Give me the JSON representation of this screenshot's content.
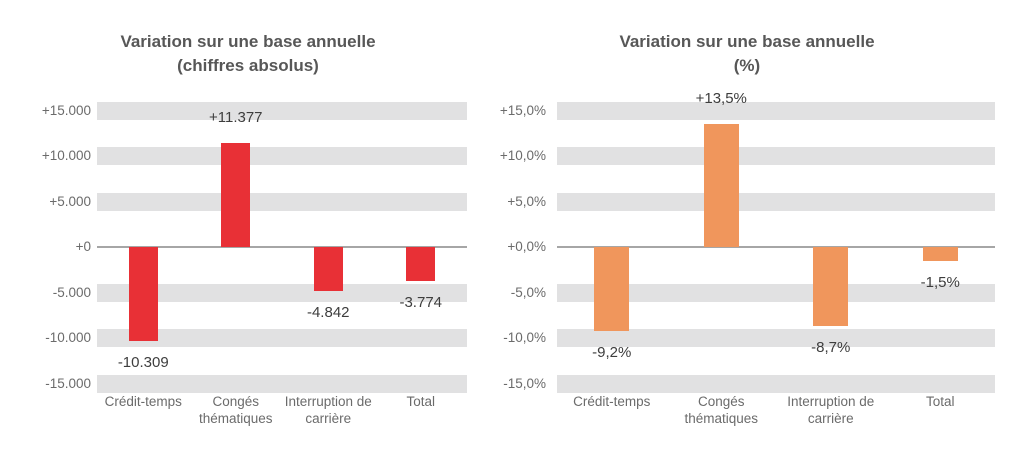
{
  "style": {
    "background": "#ffffff",
    "band_color": "#e1e1e2",
    "axis_line_color": "#a6a6a6",
    "title_color": "#575757",
    "tick_label_color": "#6b6b6b",
    "data_label_color": "#3d3d3d"
  },
  "chart_data": [
    {
      "type": "bar",
      "title": "Variation sur une base annuelle (chiffres absolus)",
      "title_lines": [
        "Variation sur une base annuelle",
        "(chiffres absolus)"
      ],
      "categories": [
        "Crédit-temps",
        "Congés thématiques",
        "Interruption de carrière",
        "Total"
      ],
      "values": [
        -10309,
        11377,
        -4842,
        -3774
      ],
      "data_labels": [
        "-10.309",
        "+11.377",
        "-4.842",
        "-3.774"
      ],
      "y_tick_labels": [
        "+15.000",
        "+10.000",
        "+5.000",
        "+0",
        "-5.000",
        "-10.000",
        "-15.000"
      ],
      "y_tick_values": [
        15000,
        10000,
        5000,
        0,
        -5000,
        -10000,
        -15000
      ],
      "ylim": [
        -15000,
        15000
      ],
      "xlabel": "",
      "ylabel": "",
      "grid": "horizontal-gray-bands-at-ticks",
      "legend": false,
      "bar_color": "#e83036"
    },
    {
      "type": "bar",
      "title": "Variation sur une base annuelle (%)",
      "title_lines": [
        "Variation sur une base annuelle",
        "(%)"
      ],
      "categories": [
        "Crédit-temps",
        "Congés thématiques",
        "Interruption de carrière",
        "Total"
      ],
      "values": [
        -9.2,
        13.5,
        -8.7,
        -1.5
      ],
      "data_labels": [
        "-9,2%",
        "+13,5%",
        "-8,7%",
        "-1,5%"
      ],
      "y_tick_labels": [
        "+15,0%",
        "+10,0%",
        "+5,0%",
        "+0,0%",
        "-5,0%",
        "-10,0%",
        "-15,0%"
      ],
      "y_tick_values": [
        15,
        10,
        5,
        0,
        -5,
        -10,
        -15
      ],
      "ylim": [
        -15,
        15
      ],
      "xlabel": "",
      "ylabel": "",
      "grid": "horizontal-gray-bands-at-ticks",
      "legend": false,
      "bar_color": "#f0965c"
    }
  ]
}
